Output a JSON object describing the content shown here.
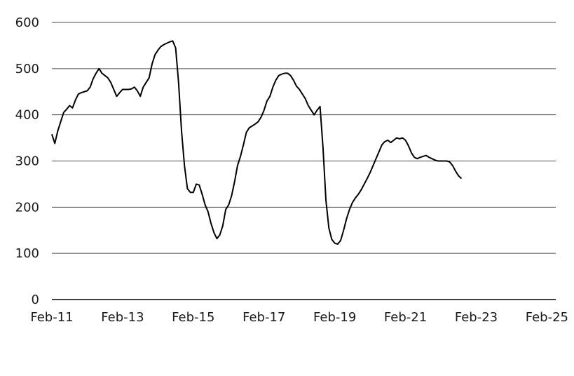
{
  "chart_data": {
    "type": "line",
    "title": "",
    "xlabel": "",
    "ylabel": "",
    "ylim": [
      0,
      600
    ],
    "xlim": [
      "2011-02",
      "2025-05"
    ],
    "y_ticks": [
      0,
      100,
      200,
      300,
      400,
      500,
      600
    ],
    "x_ticks": [
      {
        "date": "2011-02",
        "label": "Feb-11"
      },
      {
        "date": "2013-02",
        "label": "Feb-13"
      },
      {
        "date": "2015-02",
        "label": "Feb-15"
      },
      {
        "date": "2017-02",
        "label": "Feb-17"
      },
      {
        "date": "2019-02",
        "label": "Feb-19"
      },
      {
        "date": "2021-02",
        "label": "Feb-21"
      },
      {
        "date": "2023-02",
        "label": "Feb-23"
      },
      {
        "date": "2025-02",
        "label": "Feb-25"
      }
    ],
    "grid": "horizontal",
    "series": [
      {
        "points": [
          [
            "2011-02",
            358
          ],
          [
            "2011-03",
            338
          ],
          [
            "2011-04",
            365
          ],
          [
            "2011-05",
            385
          ],
          [
            "2011-06",
            405
          ],
          [
            "2011-07",
            412
          ],
          [
            "2011-08",
            420
          ],
          [
            "2011-09",
            415
          ],
          [
            "2011-10",
            432
          ],
          [
            "2011-11",
            445
          ],
          [
            "2011-12",
            448
          ],
          [
            "2012-01",
            450
          ],
          [
            "2012-02",
            452
          ],
          [
            "2012-03",
            460
          ],
          [
            "2012-04",
            478
          ],
          [
            "2012-05",
            490
          ],
          [
            "2012-06",
            500
          ],
          [
            "2012-07",
            490
          ],
          [
            "2012-08",
            485
          ],
          [
            "2012-09",
            480
          ],
          [
            "2012-10",
            470
          ],
          [
            "2012-11",
            455
          ],
          [
            "2012-12",
            440
          ],
          [
            "2013-01",
            448
          ],
          [
            "2013-02",
            455
          ],
          [
            "2013-03",
            455
          ],
          [
            "2013-04",
            455
          ],
          [
            "2013-05",
            456
          ],
          [
            "2013-06",
            460
          ],
          [
            "2013-07",
            452
          ],
          [
            "2013-08",
            440
          ],
          [
            "2013-09",
            460
          ],
          [
            "2013-10",
            470
          ],
          [
            "2013-11",
            480
          ],
          [
            "2013-12",
            510
          ],
          [
            "2014-01",
            530
          ],
          [
            "2014-02",
            540
          ],
          [
            "2014-03",
            548
          ],
          [
            "2014-04",
            552
          ],
          [
            "2014-05",
            555
          ],
          [
            "2014-06",
            558
          ],
          [
            "2014-07",
            560
          ],
          [
            "2014-08",
            545
          ],
          [
            "2014-09",
            470
          ],
          [
            "2014-10",
            365
          ],
          [
            "2014-11",
            290
          ],
          [
            "2014-12",
            240
          ],
          [
            "2015-01",
            232
          ],
          [
            "2015-02",
            232
          ],
          [
            "2015-03",
            250
          ],
          [
            "2015-04",
            248
          ],
          [
            "2015-05",
            228
          ],
          [
            "2015-06",
            205
          ],
          [
            "2015-07",
            190
          ],
          [
            "2015-08",
            165
          ],
          [
            "2015-09",
            145
          ],
          [
            "2015-10",
            132
          ],
          [
            "2015-11",
            140
          ],
          [
            "2015-12",
            160
          ],
          [
            "2016-01",
            195
          ],
          [
            "2016-02",
            205
          ],
          [
            "2016-03",
            225
          ],
          [
            "2016-04",
            255
          ],
          [
            "2016-05",
            290
          ],
          [
            "2016-06",
            310
          ],
          [
            "2016-07",
            335
          ],
          [
            "2016-08",
            362
          ],
          [
            "2016-09",
            372
          ],
          [
            "2016-10",
            376
          ],
          [
            "2016-11",
            380
          ],
          [
            "2016-12",
            385
          ],
          [
            "2017-01",
            395
          ],
          [
            "2017-02",
            410
          ],
          [
            "2017-03",
            430
          ],
          [
            "2017-04",
            440
          ],
          [
            "2017-05",
            460
          ],
          [
            "2017-06",
            475
          ],
          [
            "2017-07",
            485
          ],
          [
            "2017-08",
            488
          ],
          [
            "2017-09",
            490
          ],
          [
            "2017-10",
            490
          ],
          [
            "2017-11",
            485
          ],
          [
            "2017-12",
            475
          ],
          [
            "2018-01",
            462
          ],
          [
            "2018-02",
            455
          ],
          [
            "2018-03",
            445
          ],
          [
            "2018-04",
            435
          ],
          [
            "2018-05",
            420
          ],
          [
            "2018-06",
            410
          ],
          [
            "2018-07",
            400
          ],
          [
            "2018-08",
            410
          ],
          [
            "2018-09",
            418
          ],
          [
            "2018-10",
            330
          ],
          [
            "2018-11",
            215
          ],
          [
            "2018-12",
            155
          ],
          [
            "2019-01",
            130
          ],
          [
            "2019-02",
            122
          ],
          [
            "2019-03",
            120
          ],
          [
            "2019-04",
            128
          ],
          [
            "2019-05",
            150
          ],
          [
            "2019-06",
            175
          ],
          [
            "2019-07",
            195
          ],
          [
            "2019-08",
            210
          ],
          [
            "2019-09",
            220
          ],
          [
            "2019-10",
            228
          ],
          [
            "2019-11",
            238
          ],
          [
            "2019-12",
            250
          ],
          [
            "2020-01",
            262
          ],
          [
            "2020-02",
            275
          ],
          [
            "2020-03",
            290
          ],
          [
            "2020-04",
            305
          ],
          [
            "2020-05",
            320
          ],
          [
            "2020-06",
            335
          ],
          [
            "2020-07",
            342
          ],
          [
            "2020-08",
            345
          ],
          [
            "2020-09",
            340
          ],
          [
            "2020-10",
            345
          ],
          [
            "2020-11",
            350
          ],
          [
            "2020-12",
            348
          ],
          [
            "2021-01",
            350
          ],
          [
            "2021-02",
            345
          ],
          [
            "2021-03",
            333
          ],
          [
            "2021-04",
            318
          ],
          [
            "2021-05",
            308
          ],
          [
            "2021-06",
            305
          ],
          [
            "2021-07",
            308
          ],
          [
            "2021-08",
            310
          ],
          [
            "2021-09",
            312
          ],
          [
            "2021-10",
            308
          ],
          [
            "2021-11",
            305
          ],
          [
            "2021-12",
            302
          ],
          [
            "2022-01",
            300
          ],
          [
            "2022-02",
            300
          ],
          [
            "2022-03",
            300
          ],
          [
            "2022-04",
            300
          ],
          [
            "2022-05",
            298
          ],
          [
            "2022-06",
            290
          ],
          [
            "2022-07",
            278
          ],
          [
            "2022-08",
            268
          ],
          [
            "2022-09",
            262
          ]
        ]
      }
    ]
  }
}
